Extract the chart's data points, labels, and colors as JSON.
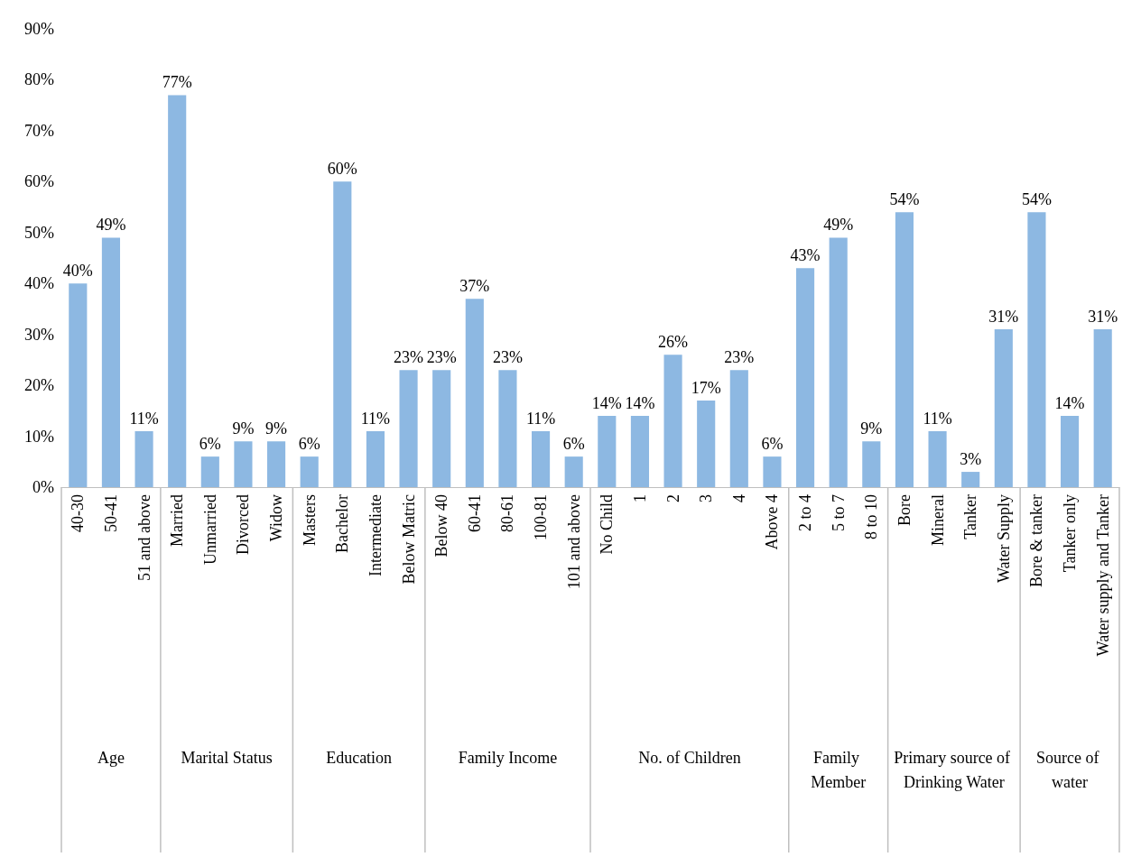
{
  "chart_data": {
    "type": "bar",
    "categories": [
      "40-30",
      "50-41",
      "51 and above",
      "Married",
      "Unmarried",
      "Divorced",
      "Widow",
      "Masters",
      "Bachelor",
      "Intermediate",
      "Below Matric",
      "Below 40",
      "60-41",
      "80-61",
      "100-81",
      "101 and above",
      "No Child",
      "1",
      "2",
      "3",
      "4",
      "Above 4",
      "2 to 4",
      "5 to 7",
      "8 to 10",
      "Bore",
      "Mineral",
      "Tanker",
      "Water Supply",
      "Bore & tanker",
      "Tanker only",
      "Water supply and Tanker"
    ],
    "values": [
      40,
      49,
      11,
      77,
      6,
      9,
      9,
      6,
      60,
      11,
      23,
      23,
      37,
      23,
      11,
      6,
      14,
      14,
      26,
      17,
      23,
      6,
      43,
      49,
      9,
      54,
      11,
      3,
      31,
      54,
      14,
      31
    ],
    "value_labels": [
      "40%",
      "49%",
      "11%",
      "77%",
      "6%",
      "9%",
      "9%",
      "6%",
      "60%",
      "11%",
      "23%",
      "23%",
      "37%",
      "23%",
      "11%",
      "6%",
      "14%",
      "14%",
      "26%",
      "17%",
      "23%",
      "6%",
      "43%",
      "49%",
      "9%",
      "54%",
      "11%",
      "3%",
      "31%",
      "54%",
      "14%",
      "31%"
    ],
    "color": "#8db8e2",
    "ylim": [
      0,
      90
    ],
    "yticks": [
      {
        "value": 0,
        "label": "0%"
      },
      {
        "value": 10,
        "label": "10%"
      },
      {
        "value": 20,
        "label": "20%"
      },
      {
        "value": 30,
        "label": "30%"
      },
      {
        "value": 40,
        "label": "40%"
      },
      {
        "value": 50,
        "label": "50%"
      },
      {
        "value": 60,
        "label": "60%"
      },
      {
        "value": 70,
        "label": "70%"
      },
      {
        "value": 80,
        "label": "80%"
      },
      {
        "value": 90,
        "label": "90%"
      }
    ],
    "grid": false,
    "annotations": [
      "Age",
      "Marital Status",
      "Education",
      "Family Income",
      "No. of Children",
      "Family Member",
      "Primary source of Drinking Water",
      "Source of water"
    ]
  }
}
